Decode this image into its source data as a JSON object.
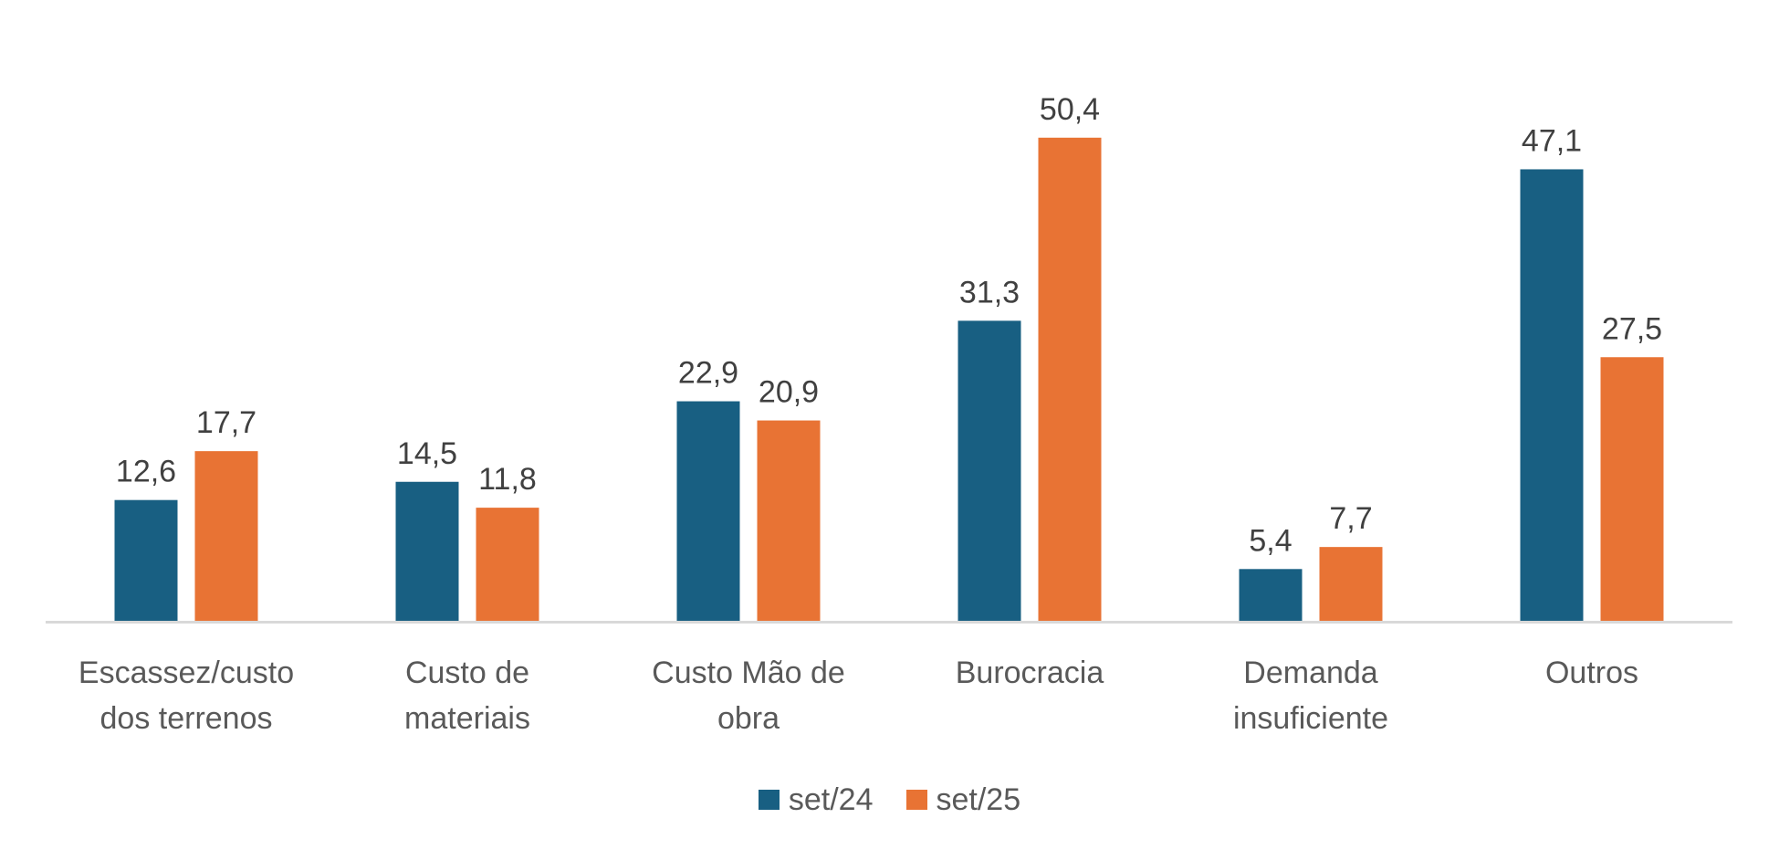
{
  "chart_data": {
    "type": "bar",
    "title": "",
    "xlabel": "",
    "ylabel": "",
    "ylim": [
      0,
      55
    ],
    "grid": false,
    "legend_position": "bottom",
    "categories": [
      [
        "Escassez/custo",
        "dos terrenos"
      ],
      [
        "Custo de",
        "materiais"
      ],
      [
        "Custo Mão de",
        "obra"
      ],
      [
        "Burocracia"
      ],
      [
        "Demanda",
        "insuficiente"
      ],
      [
        "Outros"
      ]
    ],
    "series": [
      {
        "name": "set/24",
        "color": "#185F82",
        "values": [
          12.6,
          14.5,
          22.9,
          31.3,
          5.4,
          47.1
        ],
        "labels": [
          "12,6",
          "14,5",
          "22,9",
          "31,3",
          "5,4",
          "47,1"
        ]
      },
      {
        "name": "set/25",
        "color": "#E87334",
        "values": [
          17.7,
          11.8,
          20.9,
          50.4,
          7.7,
          27.5
        ],
        "labels": [
          "17,7",
          "11,8",
          "20,9",
          "50,4",
          "7,7",
          "27,5"
        ]
      }
    ]
  },
  "colors": {
    "axis": "#D9D9D9",
    "data_label": "#404040",
    "category_label": "#595959"
  }
}
